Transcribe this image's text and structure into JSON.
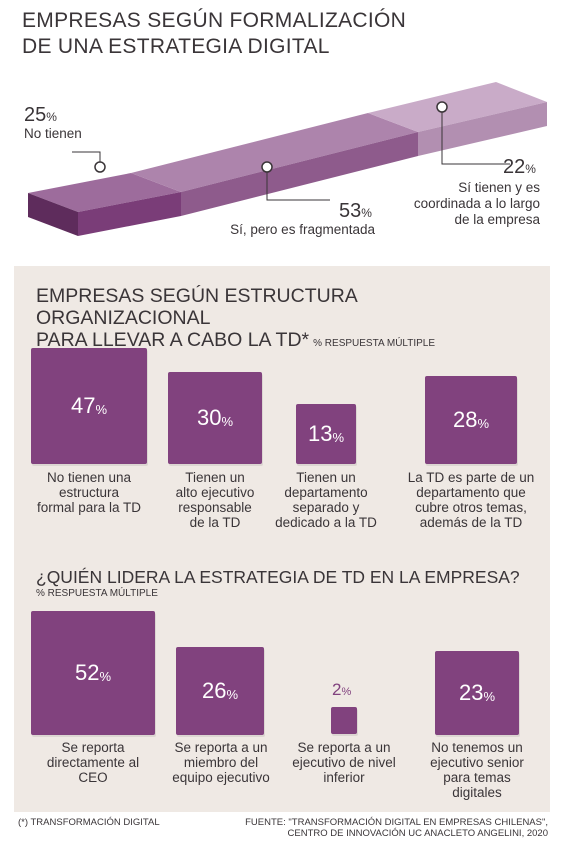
{
  "top": {
    "title_line1": "EMPRESAS SEGÚN  FORMALIZACIÓN",
    "title_line2": "DE UNA ESTRATEGIA DIGITAL",
    "segments": [
      {
        "value": 25,
        "pct": "25",
        "label": "No tienen"
      },
      {
        "value": 53,
        "pct": "53",
        "label": "Sí, pero es fragmentada"
      },
      {
        "value": 22,
        "pct": "22",
        "label_lines": [
          "Sí tienen y es",
          "coordinada a lo largo",
          "de la empresa"
        ]
      }
    ],
    "pct_sign": "%"
  },
  "structure": {
    "title_line1": "EMPRESAS SEGÚN ESTRUCTURA ORGANIZACIONAL",
    "title_line2": "PARA LLEVAR A CABO LA TD*",
    "note": "% RESPUESTA MÚLTIPLE",
    "items": [
      {
        "pct": "47",
        "lines": [
          "No tienen una",
          "estructura",
          "formal para la TD"
        ]
      },
      {
        "pct": "30",
        "lines": [
          "Tienen un",
          "alto ejecutivo",
          "responsable",
          "de la TD"
        ]
      },
      {
        "pct": "13",
        "lines": [
          "Tienen un",
          "departamento",
          "separado y",
          "dedicado a la TD"
        ]
      },
      {
        "pct": "28",
        "lines": [
          "La TD es parte de un",
          "departamento que",
          "cubre otros temas,",
          "además de la TD"
        ]
      }
    ]
  },
  "leader": {
    "title": "¿QUIÉN LIDERA LA ESTRATEGIA DE TD EN LA EMPRESA?",
    "note": "% RESPUESTA MÚLTIPLE",
    "items": [
      {
        "pct": "52",
        "lines": [
          "Se reporta",
          "directamente al",
          "CEO"
        ]
      },
      {
        "pct": "26",
        "lines": [
          "Se reporta a un",
          "miembro del",
          "equipo ejecutivo"
        ]
      },
      {
        "pct": "2",
        "lines": [
          "Se reporta a un",
          "ejecutivo de nivel",
          "inferior"
        ]
      },
      {
        "pct": "23",
        "lines": [
          "No tenemos un",
          "ejecutivo senior",
          "para temas",
          "digitales"
        ]
      }
    ]
  },
  "footer": {
    "footnote": "(*) TRANSFORMACIÓN DIGITAL",
    "source_line1": "FUENTE:  \"TRANSFORMACIÓN DIGITAL EN EMPRESAS CHILENAS\",",
    "source_line2": "CENTRO DE INNOVACIÓN UC ANACLETO ANGELINI, 2020"
  },
  "colors": {
    "box": "#81427e",
    "bar_dark": "#7a3d78",
    "bar_mid": "#a77aa6",
    "bar_light": "#c8a9c7",
    "panel": "#efe9e4"
  },
  "chart_data": [
    {
      "type": "bar",
      "title": "EMPRESAS SEGÚN  FORMALIZACIÓN DE UNA ESTRATEGIA DIGITAL",
      "categories": [
        "No tienen",
        "Sí, pero es fragmentada",
        "Sí tienen y es coordinada a lo largo de la empresa"
      ],
      "values": [
        25,
        53,
        22
      ],
      "unit": "%"
    },
    {
      "type": "bar",
      "title": "EMPRESAS SEGÚN ESTRUCTURA ORGANIZACIONAL PARA LLEVAR A CABO LA TD*",
      "categories": [
        "No tienen una estructura formal para la TD",
        "Tienen un alto ejecutivo responsable de la TD",
        "Tienen un departamento separado y dedicado a la TD",
        "La TD es parte de un departamento que cubre otros temas, además de la TD"
      ],
      "values": [
        47,
        30,
        13,
        28
      ],
      "unit": "%"
    },
    {
      "type": "bar",
      "title": "¿QUIÉN LIDERA LA ESTRATEGIA DE TD EN LA EMPRESA?",
      "categories": [
        "Se reporta directamente al CEO",
        "Se reporta a un miembro del equipo ejecutivo",
        "Se reporta a un ejecutivo de nivel inferior",
        "No tenemos un ejecutivo senior para temas digitales"
      ],
      "values": [
        52,
        26,
        2,
        23
      ],
      "unit": "%"
    }
  ]
}
